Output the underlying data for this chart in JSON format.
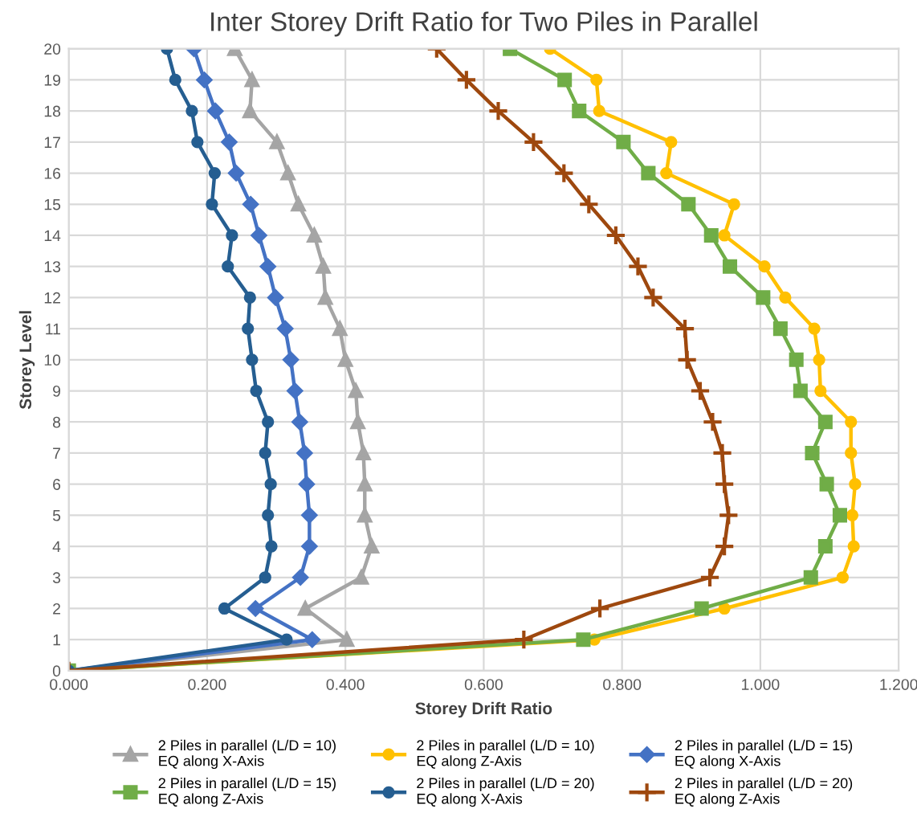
{
  "chart_data": {
    "type": "line",
    "title": "Inter Storey Drift Ratio for Two Piles in Parallel",
    "xlabel": "Storey Drift Ratio",
    "ylabel": "Storey Level",
    "xlim": [
      0,
      1.2
    ],
    "xticks": [
      {
        "value": 0,
        "label": "0.000"
      },
      {
        "value": 0.2,
        "label": "0.200"
      },
      {
        "value": 0.4,
        "label": "0.400"
      },
      {
        "value": 0.6,
        "label": "0.600"
      },
      {
        "value": 0.8,
        "label": "0.800"
      },
      {
        "value": 1.0,
        "label": "1.000"
      },
      {
        "value": 1.2,
        "label": "1.200"
      }
    ],
    "ylim": [
      0,
      20
    ],
    "yticks": [
      0,
      1,
      2,
      3,
      4,
      5,
      6,
      7,
      8,
      9,
      10,
      11,
      12,
      13,
      14,
      15,
      16,
      17,
      18,
      19,
      20
    ],
    "grid": true,
    "legend": "bottom",
    "series": [
      {
        "name": "2 Piles in parallel (L/D = 10)\nEQ along X-Axis",
        "color": "#a5a5a5",
        "marker": "triangle",
        "x": [
          0,
          0.402,
          0.342,
          0.423,
          0.438,
          0.428,
          0.428,
          0.426,
          0.418,
          0.415,
          0.4,
          0.392,
          0.371,
          0.368,
          0.355,
          0.332,
          0.317,
          0.301,
          0.262,
          0.265,
          0.24
        ],
        "values": [
          0,
          1,
          2,
          3,
          4,
          5,
          6,
          7,
          8,
          9,
          10,
          11,
          12,
          13,
          14,
          15,
          16,
          17,
          18,
          19,
          20
        ]
      },
      {
        "name": "2 Piles in parallel (L/D = 10)\nEQ along Z-Axis",
        "color": "#ffc000",
        "marker": "circle",
        "x": [
          0,
          0.76,
          0.948,
          1.119,
          1.135,
          1.133,
          1.137,
          1.131,
          1.131,
          1.087,
          1.085,
          1.078,
          1.036,
          1.006,
          0.948,
          0.962,
          0.864,
          0.871,
          0.767,
          0.763,
          0.696
        ],
        "values": [
          0,
          1,
          2,
          3,
          4,
          5,
          6,
          7,
          8,
          9,
          10,
          11,
          12,
          13,
          14,
          15,
          16,
          17,
          18,
          19,
          20
        ]
      },
      {
        "name": "2 Piles in parallel (L/D = 15)\nEQ along X-Axis",
        "color": "#4472c4",
        "marker": "diamond",
        "x": [
          0,
          0.352,
          0.27,
          0.335,
          0.348,
          0.348,
          0.344,
          0.341,
          0.334,
          0.327,
          0.321,
          0.313,
          0.299,
          0.288,
          0.275,
          0.263,
          0.242,
          0.232,
          0.212,
          0.196,
          0.181
        ],
        "values": [
          0,
          1,
          2,
          3,
          4,
          5,
          6,
          7,
          8,
          9,
          10,
          11,
          12,
          13,
          14,
          15,
          16,
          17,
          18,
          19,
          20
        ]
      },
      {
        "name": "2 Piles in parallel (L/D = 15)\nEQ along Z-Axis",
        "color": "#70ad47",
        "marker": "square",
        "x": [
          0,
          0.744,
          0.915,
          1.073,
          1.094,
          1.115,
          1.096,
          1.075,
          1.094,
          1.058,
          1.052,
          1.029,
          1.004,
          0.956,
          0.929,
          0.896,
          0.838,
          0.802,
          0.738,
          0.717,
          0.638
        ],
        "values": [
          0,
          1,
          2,
          3,
          4,
          5,
          6,
          7,
          8,
          9,
          10,
          11,
          12,
          13,
          14,
          15,
          16,
          17,
          18,
          19,
          20
        ]
      },
      {
        "name": "2 Piles in parallel (L/D = 20)\nEQ along X-Axis",
        "color": "#255e91",
        "marker": "circle",
        "x": [
          0,
          0.315,
          0.225,
          0.284,
          0.293,
          0.288,
          0.292,
          0.284,
          0.288,
          0.271,
          0.265,
          0.259,
          0.262,
          0.23,
          0.236,
          0.207,
          0.211,
          0.186,
          0.178,
          0.154,
          0.142
        ],
        "values": [
          0,
          1,
          2,
          3,
          4,
          5,
          6,
          7,
          8,
          9,
          10,
          11,
          12,
          13,
          14,
          15,
          16,
          17,
          18,
          19,
          20
        ]
      },
      {
        "name": "2 Piles in parallel (L/D = 20)\nEQ along Z-Axis",
        "color": "#9e480e",
        "marker": "cross",
        "x": [
          0,
          0.658,
          0.768,
          0.927,
          0.948,
          0.954,
          0.948,
          0.945,
          0.931,
          0.913,
          0.894,
          0.891,
          0.845,
          0.823,
          0.791,
          0.752,
          0.716,
          0.672,
          0.621,
          0.575,
          0.532
        ],
        "values": [
          0,
          1,
          2,
          3,
          4,
          5,
          6,
          7,
          8,
          9,
          10,
          11,
          12,
          13,
          14,
          15,
          16,
          17,
          18,
          19,
          20
        ]
      }
    ]
  }
}
